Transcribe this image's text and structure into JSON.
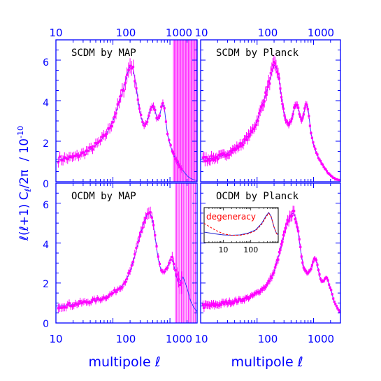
{
  "colors": {
    "axis": "#0000ff",
    "data": "#ff00ff",
    "model": "#3a3aff",
    "inset_model": "#2222cc",
    "inset_dashed": "#ff0000",
    "label": "#0000ff"
  },
  "chart_data": {
    "type": "scatter",
    "xscale": "log",
    "xlim": [
      10,
      3000
    ],
    "ylim": [
      0,
      7
    ],
    "xticks": [
      "10",
      "100",
      "1000"
    ],
    "yticks": [
      "0",
      "2",
      "4",
      "6"
    ],
    "xlabel": "multipole ℓ",
    "ylabel": "ℓ(ℓ+1) C",
    "ylabel_sub": "ℓ",
    "ylabel_tail": "/2π",
    "ylabel_units": "/ 10",
    "ylabel_exp": "-10",
    "grid": false,
    "panels": [
      {
        "title": "SCDM by MAP",
        "model": "scdm",
        "experiment": "MAP",
        "model_x": [
          10,
          12,
          15,
          20,
          25,
          30,
          40,
          50,
          60,
          80,
          100,
          120,
          150,
          180,
          200,
          220,
          250,
          280,
          300,
          330,
          360,
          400,
          450,
          500,
          550,
          600,
          650,
          700,
          750,
          800,
          900,
          1000,
          1100,
          1200,
          1400,
          1600,
          1800,
          2000,
          2200,
          2500,
          3000
        ],
        "model_y": [
          1.1,
          1.12,
          1.15,
          1.2,
          1.3,
          1.4,
          1.6,
          1.8,
          2.0,
          2.45,
          3.0,
          3.65,
          4.5,
          5.35,
          5.75,
          5.7,
          4.9,
          3.9,
          3.35,
          2.95,
          2.8,
          3.0,
          3.55,
          3.8,
          3.5,
          3.05,
          3.15,
          3.6,
          3.85,
          3.6,
          2.4,
          1.85,
          1.5,
          1.25,
          0.9,
          0.65,
          0.45,
          0.3,
          0.2,
          0.12,
          0.05
        ],
        "points": {
          "count": 80,
          "lmax": 1600,
          "err_rel": 0.22,
          "err_base": 0.015,
          "noise_knee": 1000,
          "big_err_from": 1150,
          "big_err_to": 2950,
          "big_err_count": 26,
          "big_err_center": 2.9,
          "big_err_half": 4.6
        }
      },
      {
        "title": "SCDM by Planck",
        "model": "scdm",
        "experiment": "Planck",
        "points": {
          "count": 130,
          "lmax": 2900,
          "err_rel": 0.22,
          "err_base": 0.01,
          "noise_knee": 2600
        }
      },
      {
        "title": "OCDM by MAP",
        "model": "ocdm",
        "experiment": "MAP",
        "model_x": [
          10,
          12,
          15,
          20,
          25,
          30,
          40,
          50,
          60,
          80,
          100,
          150,
          200,
          250,
          300,
          350,
          400,
          450,
          500,
          550,
          600,
          650,
          700,
          800,
          900,
          1000,
          1100,
          1200,
          1300,
          1400,
          1500,
          1700,
          2000,
          2300,
          2600,
          3000
        ],
        "model_y": [
          0.85,
          0.85,
          0.88,
          0.92,
          0.98,
          1.02,
          1.08,
          1.15,
          1.2,
          1.33,
          1.5,
          1.9,
          2.55,
          3.5,
          4.4,
          5.05,
          5.45,
          5.5,
          5.1,
          4.3,
          3.5,
          2.95,
          2.65,
          2.5,
          2.75,
          3.2,
          3.2,
          2.75,
          2.3,
          2.05,
          2.05,
          2.3,
          1.75,
          1.1,
          0.8,
          0.55
        ],
        "points": {
          "count": 80,
          "lmax": 1600,
          "err_rel": 0.22,
          "err_base": 0.015,
          "noise_knee": 1000,
          "big_err_from": 1250,
          "big_err_to": 2800,
          "big_err_count": 18,
          "big_err_center": 3.2,
          "big_err_half": 4.2
        }
      },
      {
        "title": "OCDM by Planck",
        "model": "ocdm",
        "experiment": "Planck",
        "points": {
          "count": 130,
          "lmax": 2900,
          "err_rel": 0.22,
          "err_base": 0.01,
          "noise_knee": 2600
        },
        "inset": {
          "label": "degeneracy",
          "xticks": [
            "10",
            "100"
          ],
          "xlim": [
            2,
            1000
          ],
          "ylim": [
            0,
            1
          ],
          "solid_x": [
            2,
            5,
            10,
            20,
            40,
            80,
            150,
            250,
            350,
            450,
            550,
            700,
            850,
            1000
          ],
          "solid_y": [
            0.3,
            0.25,
            0.22,
            0.21,
            0.22,
            0.27,
            0.36,
            0.55,
            0.75,
            0.86,
            0.75,
            0.45,
            0.28,
            0.22
          ],
          "dashed_x": [
            2,
            5,
            10,
            20,
            40,
            80,
            150,
            250,
            350,
            450,
            550,
            700,
            850,
            1000
          ],
          "dashed_y": [
            0.55,
            0.36,
            0.25,
            0.21,
            0.21,
            0.25,
            0.34,
            0.52,
            0.72,
            0.84,
            0.74,
            0.45,
            0.27,
            0.2
          ]
        }
      }
    ]
  }
}
